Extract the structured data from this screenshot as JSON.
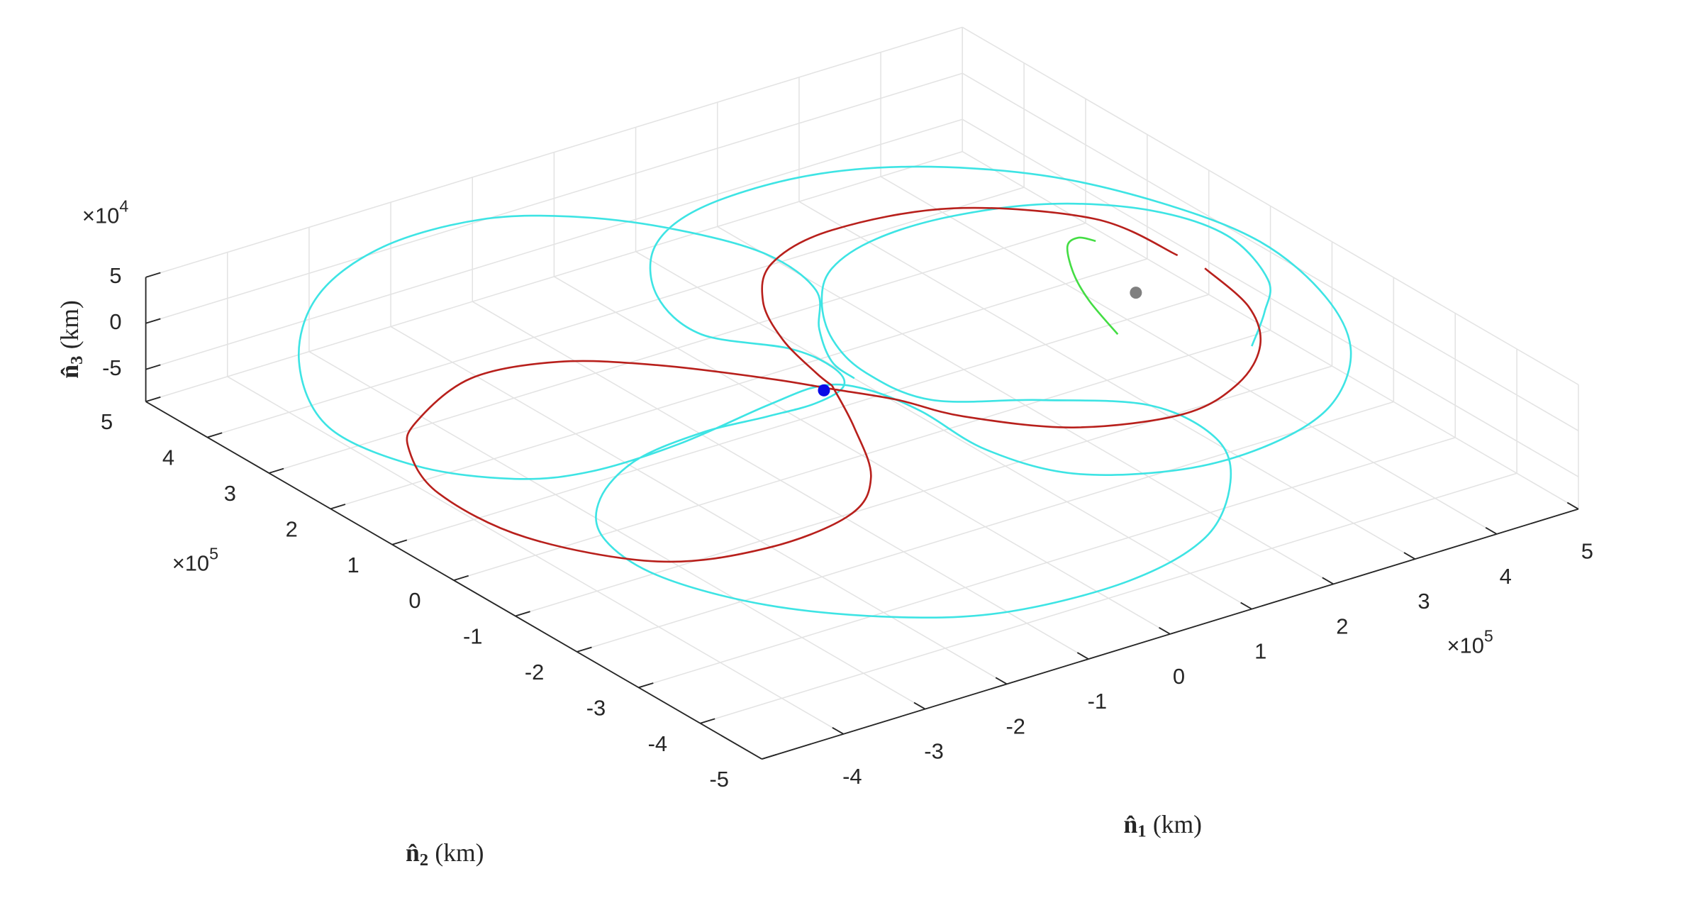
{
  "chart_data": {
    "type": "line3d",
    "xlim": [
      -5,
      5
    ],
    "ylim": [
      -5,
      5
    ],
    "zlim": [
      -8.5,
      5
    ],
    "xticks": [
      -4,
      -3,
      -2,
      -1,
      0,
      1,
      2,
      3,
      4,
      5
    ],
    "yticks": [
      -5,
      -4,
      -3,
      -2,
      -1,
      0,
      1,
      2,
      3,
      4,
      5
    ],
    "zticks": [
      -5,
      0,
      5
    ],
    "x_multiplier": {
      "base": "×10",
      "exponent": "5"
    },
    "y_multiplier": {
      "base": "×10",
      "exponent": "5"
    },
    "z_multiplier": {
      "base": "×10",
      "exponent": "4"
    },
    "x_label": {
      "symbol": "n̂",
      "subscript": "1",
      "unit": "(km)"
    },
    "y_label": {
      "symbol": "n̂",
      "subscript": "2",
      "unit": "(km)"
    },
    "z_label": {
      "symbol": "n̂",
      "subscript": "3",
      "unit": "(km)"
    },
    "grid": true,
    "series": [
      {
        "mode": "line",
        "color": "#3ee4e4",
        "x": [
          3.55,
          4.12,
          4.6,
          4.88,
          4.61,
          3.91,
          2.95,
          2.02,
          1.26,
          0.72,
          0.28,
          0.09,
          0.24,
          1.11,
          1.92,
          1.99,
          1.5,
          0.54,
          -0.68,
          -2.07,
          -3.03,
          -3.91,
          -4.38,
          -4.29,
          -3.78,
          -2.97,
          -2.06,
          -1.31,
          -0.73,
          -0.27,
          -0.1,
          -0.19,
          -0.7,
          -0.52,
          0.14,
          1.04,
          2.25,
          3.28,
          4.22,
          4.8,
          5.06,
          4.83,
          4.28,
          3.36,
          2.35,
          1.3,
          0.36,
          -0.01,
          0.0,
          -0.14,
          -0.45,
          -1.16,
          -2.39,
          -3.47,
          -4.19,
          -4.8,
          -4.97,
          -4.3,
          -3.24,
          -2.04,
          -0.87,
          -0.05,
          0.56,
          0.93,
          0.83,
          0.32,
          -0.03,
          -0.08
        ],
        "y": [
          -1.62,
          -1.07,
          -0.49,
          0.55,
          1.44,
          2.11,
          2.44,
          2.45,
          2.16,
          1.61,
          0.85,
          0.06,
          -0.81,
          -1.42,
          -2.14,
          -3.11,
          -3.99,
          -4.86,
          -5.23,
          -5.12,
          -4.6,
          -3.65,
          -2.49,
          -1.48,
          -0.76,
          -0.26,
          -0.12,
          -0.19,
          -0.22,
          -0.06,
          0.35,
          0.93,
          1.69,
          2.64,
          3.55,
          4.0,
          4.01,
          3.59,
          2.7,
          1.52,
          0.26,
          -1.11,
          -2.26,
          -3.15,
          -3.52,
          -3.49,
          -2.95,
          -2.02,
          -0.95,
          -0.24,
          0.07,
          0.01,
          -0.2,
          -0.21,
          0.08,
          0.87,
          2.07,
          3.44,
          4.54,
          5.07,
          5.02,
          4.51,
          3.72,
          2.78,
          1.85,
          1.12,
          0.45,
          0.02
        ],
        "z": [
          0,
          0,
          0,
          0,
          0,
          0,
          0,
          0,
          0,
          0,
          0,
          0,
          0,
          0,
          0,
          0,
          0,
          0,
          0,
          0,
          0,
          0,
          0,
          0,
          0,
          0,
          0,
          0,
          0,
          0,
          0,
          0,
          0,
          0,
          0,
          0,
          0,
          0,
          0,
          0,
          0,
          0,
          0,
          0,
          0,
          0,
          0,
          0,
          0,
          0,
          0,
          0,
          0,
          0,
          0,
          0,
          0,
          0,
          0,
          0,
          0,
          0,
          0,
          0,
          0,
          0,
          0,
          0
        ]
      },
      {
        "mode": "line",
        "color": "#b8201c",
        "x": [
          -0.36,
          -0.76,
          -1.31,
          -2.01,
          -3.13,
          -4.19,
          -4.91,
          -5.0,
          -4.63,
          -4.19,
          -3.15,
          -2.22,
          -1.48,
          -0.78,
          -0.4,
          -0.03,
          0.27,
          1.0,
          2.06,
          2.92,
          3.63,
          4.07,
          4.25,
          null,
          4.21,
          4.05,
          3.06,
          1.79,
          0.85,
          0.25,
          -0.12,
          -0.31,
          -0.36
        ],
        "y": [
          0.01,
          -0.88,
          -1.88,
          -2.46,
          -2.6,
          -2.23,
          -1.05,
          0.25,
          1.22,
          1.68,
          2.17,
          1.98,
          1.37,
          0.51,
          -0.06,
          -0.62,
          -1.29,
          -2.11,
          -2.48,
          -2.23,
          -1.65,
          -0.88,
          0.07,
          null,
          0.46,
          1.59,
          2.58,
          2.86,
          2.59,
          1.94,
          1.13,
          0.34,
          0.01
        ],
        "z": [
          0,
          0,
          0,
          0,
          0,
          0,
          0,
          0,
          0,
          0,
          0,
          0,
          0,
          0,
          0,
          0,
          0,
          0,
          0,
          0,
          0,
          0,
          0,
          null,
          0,
          0,
          0,
          0,
          0,
          0,
          0,
          0,
          0
        ]
      },
      {
        "mode": "line",
        "color": "#44dd44",
        "x": [
          3.75,
          3.66,
          3.45,
          3.12,
          2.87,
          2.64
        ],
        "y": [
          1.18,
          1.34,
          1.24,
          0.7,
          0.11,
          -0.65
        ],
        "z": [
          0,
          0,
          0,
          0,
          0,
          0
        ]
      },
      {
        "mode": "marker",
        "color": "#808080",
        "x": [
          3.36
        ],
        "y": [
          0.01
        ],
        "z": [
          0
        ]
      },
      {
        "mode": "marker",
        "color": "#0a0ae6",
        "x": [
          -0.49
        ],
        "y": [
          -0.03
        ],
        "z": [
          0
        ]
      }
    ]
  }
}
